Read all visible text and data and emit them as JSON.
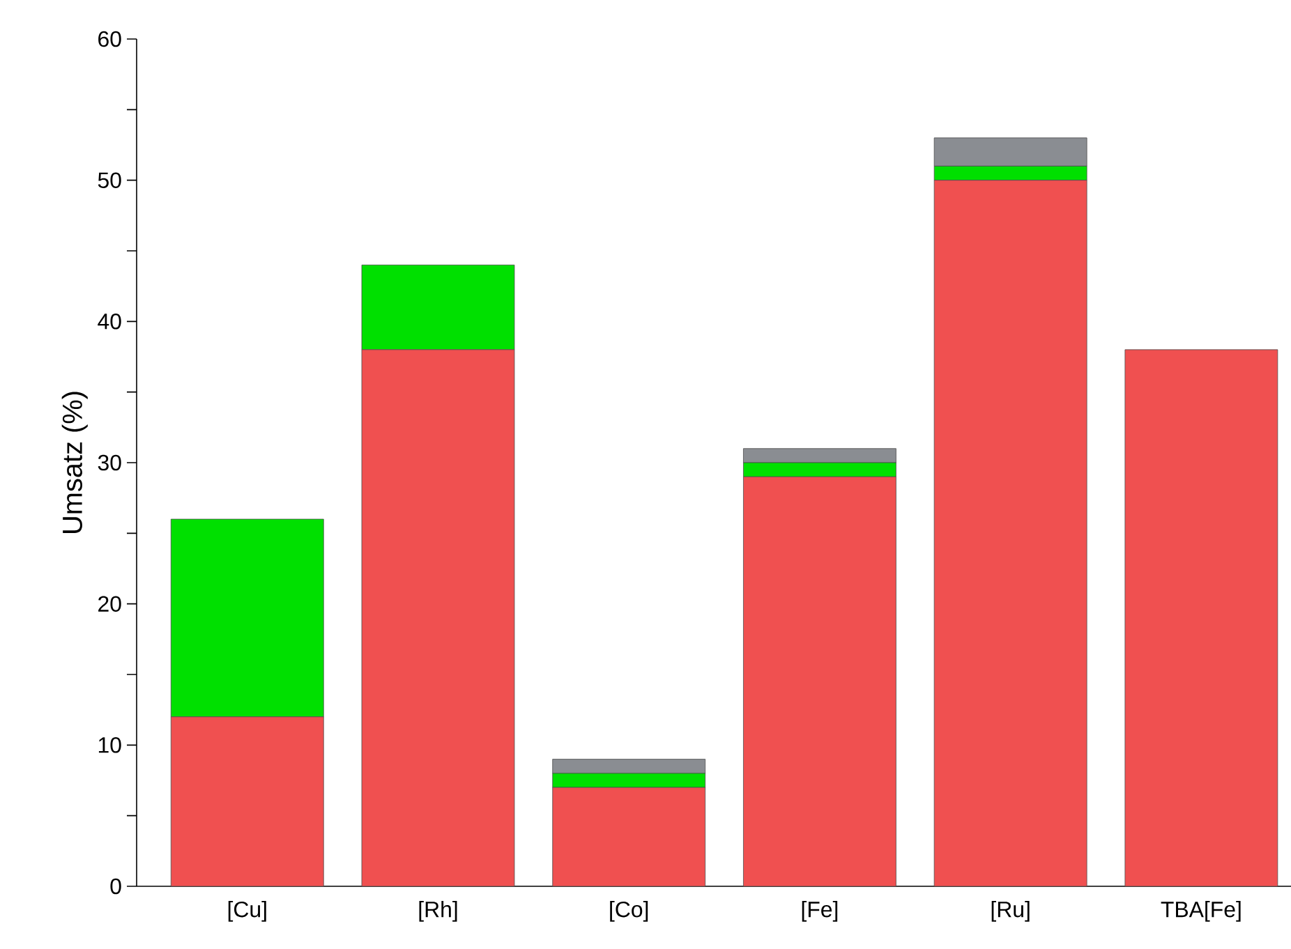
{
  "chart_data": {
    "type": "bar",
    "ylabel": "Umsatz (%)",
    "stacked": true,
    "categories": [
      "[Cu]",
      "[Rh]",
      "[Co]",
      "[Fe]",
      "[Ru]",
      "TBA[Fe]"
    ],
    "series": [
      {
        "color": "#f05050",
        "values": [
          12,
          38,
          7,
          29,
          50,
          38
        ]
      },
      {
        "color": "#00e000",
        "values": [
          14,
          6,
          1,
          1,
          1,
          null
        ]
      },
      {
        "color": "#8a8d92",
        "values": [
          null,
          null,
          1,
          1,
          2,
          null
        ]
      }
    ],
    "ylim": [
      0,
      60
    ],
    "yticks": [
      0,
      {
        "value": 5,
        "label": null
      },
      10,
      {
        "value": 15,
        "label": null
      },
      20,
      {
        "value": 25,
        "label": null
      },
      30,
      {
        "value": 35,
        "label": null
      },
      40,
      {
        "value": 45,
        "label": null
      },
      50,
      {
        "value": 55,
        "label": null
      },
      60
    ]
  }
}
